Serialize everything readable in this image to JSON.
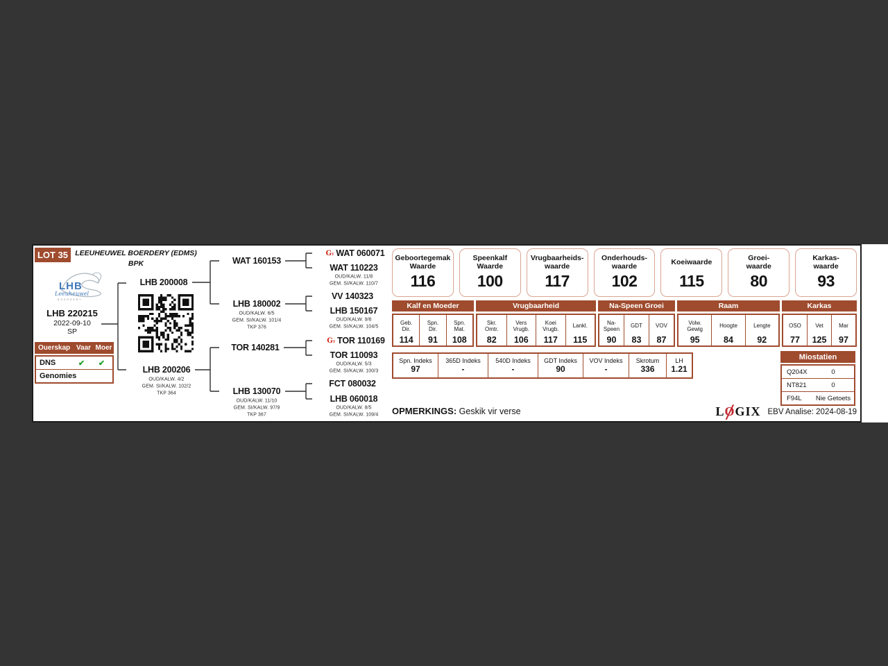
{
  "colors": {
    "brown": "#9F4B2E",
    "box_border": "#D9A492",
    "check_green": "#21A22B",
    "accent_red": "#cf2a1b",
    "logo_blue": "#3F79B8"
  },
  "icons": {
    "genotyped": "G",
    "check": "✔"
  },
  "lot": {
    "badge": "LOT 35",
    "farm_line1": "LEEUHEUWEL BOERDERY (EDMS)",
    "farm_line2": "BPK"
  },
  "logo": {
    "brand": "LHB",
    "script": "Leeuheuwel",
    "sub": "BOERDERY"
  },
  "animal": {
    "id": "LHB 220215",
    "dob": "2022-09-10",
    "status": "SP"
  },
  "parentage": {
    "title": "Ouerskap",
    "col1": "Vaar",
    "col2": "Moer",
    "rows": [
      {
        "label": "DNS",
        "vaar": "✔",
        "moer": "✔"
      },
      {
        "label": "Genomies",
        "vaar": "",
        "moer": ""
      }
    ]
  },
  "pedigree": {
    "sire": {
      "id": "LHB 200008"
    },
    "dam": {
      "id": "LHB 200206",
      "lines": [
        "OUD/KALW. 4/2",
        "GEM. SI/KALW. 102/2",
        "TKP 364"
      ]
    },
    "ss": {
      "id": "WAT 160153"
    },
    "sd": {
      "id": "LHB 180002",
      "lines": [
        "OUD/KALW. 6/5",
        "GEM. SI/KALW. 101/4",
        "TKP 376"
      ]
    },
    "ds": {
      "id": "TOR 140281"
    },
    "dd": {
      "id": "LHB 130070",
      "lines": [
        "OUD/KALW. 11/10",
        "GEM. SI/KALW. 97/9",
        "TKP 367"
      ]
    },
    "sss": {
      "id": "WAT 060071"
    },
    "ssd": {
      "id": "WAT 110223",
      "lines": [
        "OUD/KALW. 11/8",
        "GEM. SI/KALW. 110/7"
      ]
    },
    "sds": {
      "id": "VV 140323"
    },
    "sdd": {
      "id": "LHB 150167",
      "lines": [
        "OUD/KALW. 9/6",
        "GEM. SI/KALW. 104/5"
      ]
    },
    "dss": {
      "id": "TOR 110169"
    },
    "dsd": {
      "id": "TOR 110093",
      "lines": [
        "OUD/KALW. 5/3",
        "GEM. SI/KALW. 100/3"
      ]
    },
    "dds": {
      "id": "FCT 080032"
    },
    "ddd": {
      "id": "LHB 060018",
      "lines": [
        "OUD/KALW. 8/5",
        "GEM. SI/KALW. 109/4"
      ]
    }
  },
  "value_boxes": [
    {
      "l1": "Geboortegemak",
      "l2": "Waarde",
      "value": "116"
    },
    {
      "l1": "Speenkalf",
      "l2": "Waarde",
      "value": "100"
    },
    {
      "l1": "Vrugbaarheids-",
      "l2": "waarde",
      "value": "117"
    },
    {
      "l1": "Onderhouds-",
      "l2": "waarde",
      "value": "102"
    },
    {
      "l1": "Koeiwaarde",
      "l2": "",
      "value": "115"
    },
    {
      "l1": "Groei-",
      "l2": "waarde",
      "value": "80"
    },
    {
      "l1": "Karkas-",
      "l2": "waarde",
      "value": "93"
    }
  ],
  "stats": {
    "groups": [
      {
        "name": "Kalf en Moeder",
        "cols": [
          {
            "l1": "Geb.",
            "l2": "Dir.",
            "v": "114"
          },
          {
            "l1": "Spn.",
            "l2": "Dir.",
            "v": "91"
          },
          {
            "l1": "Spn.",
            "l2": "Mat.",
            "v": "108"
          }
        ]
      },
      {
        "name": "Vrugbaarheid",
        "cols": [
          {
            "l1": "Skr.",
            "l2": "Omtr.",
            "v": "82"
          },
          {
            "l1": "Vers",
            "l2": "Vrugb.",
            "v": "106"
          },
          {
            "l1": "Koei",
            "l2": "Vrugb.",
            "v": "117"
          },
          {
            "l1": "Lankl.",
            "l2": "",
            "v": "115"
          }
        ]
      },
      {
        "name": "Na-Speen Groei",
        "cols": [
          {
            "l1": "Na-",
            "l2": "Speen",
            "v": "90"
          },
          {
            "l1": "GDT",
            "l2": "",
            "v": "83"
          },
          {
            "l1": "VOV",
            "l2": "",
            "v": "87"
          }
        ]
      },
      {
        "name": "Raam",
        "cols": [
          {
            "l1": "Volw.",
            "l2": "Gewig",
            "v": "95"
          },
          {
            "l1": "Hoogte",
            "l2": "",
            "v": "84"
          },
          {
            "l1": "Lengte",
            "l2": "",
            "v": "92"
          }
        ]
      },
      {
        "name": "Karkas",
        "cols": [
          {
            "l1": "OSO",
            "l2": "",
            "v": "77"
          },
          {
            "l1": "Vet",
            "l2": "",
            "v": "125"
          },
          {
            "l1": "Mar",
            "l2": "",
            "v": "97"
          }
        ]
      }
    ]
  },
  "indeks": [
    {
      "label": "Spn. Indeks",
      "v": "97"
    },
    {
      "label": "365D Indeks",
      "v": "-"
    },
    {
      "label": "540D Indeks",
      "v": "-"
    },
    {
      "label": "GDT Indeks",
      "v": "90"
    },
    {
      "label": "VOV Indeks",
      "v": "-"
    },
    {
      "label": "Skrotum",
      "v": "336"
    },
    {
      "label": "LH",
      "v": "1.21"
    }
  ],
  "miostatien": {
    "title": "Miostatien",
    "rows": [
      {
        "gene": "Q204X",
        "result": "0"
      },
      {
        "gene": "NT821",
        "result": "0"
      },
      {
        "gene": "F94L",
        "result": "Nie Getoets"
      }
    ]
  },
  "opmerkings": {
    "label": "OPMERKINGS:",
    "text": "Geskik vir verse"
  },
  "footer": {
    "logix_l": "L",
    "logix_o": "O",
    "logix_gix": "GIX",
    "ebv": "EBV Analise: 2024-08-19"
  }
}
